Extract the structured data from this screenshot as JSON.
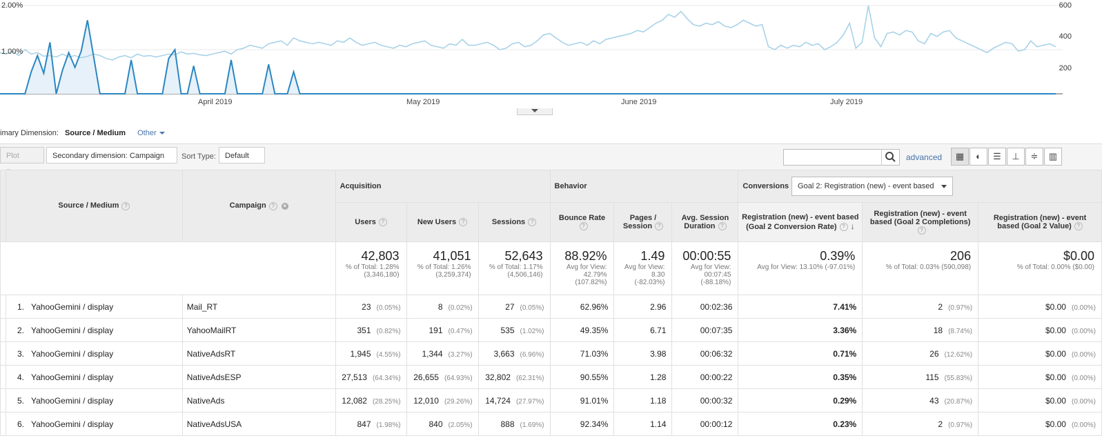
{
  "chart": {
    "left_axis": [
      "2.00%",
      "1.00%"
    ],
    "right_axis": [
      "600",
      "400",
      "200"
    ],
    "months": [
      "April 2019",
      "May 2019",
      "June 2019",
      "July 2019"
    ],
    "colors": {
      "series_light": "#a8d2e8",
      "series_dark": "#2b86c0",
      "fill": "#e6f1fa"
    }
  },
  "chart_data": {
    "type": "line",
    "series": [
      {
        "values": [
          280,
          270,
          290,
          260,
          300,
          270,
          280,
          255,
          260,
          250,
          270,
          250,
          260,
          245,
          255,
          270,
          260,
          240,
          230,
          250,
          260,
          245,
          270,
          255,
          260,
          250,
          260,
          270,
          265,
          285,
          270,
          275,
          265,
          260,
          270,
          280,
          290,
          270,
          300,
          310,
          330,
          320,
          310,
          340,
          350,
          360,
          330,
          380,
          360,
          350,
          340,
          350,
          340,
          330,
          360,
          350,
          380,
          350,
          330,
          340,
          350,
          330,
          320,
          310,
          330,
          320,
          340,
          350,
          360,
          330,
          320,
          310,
          340,
          330,
          370,
          330,
          330,
          340,
          350,
          330,
          300,
          310,
          340,
          350,
          320,
          330,
          360,
          400,
          410,
          380,
          350,
          330,
          340,
          350,
          330,
          360,
          340,
          370,
          380,
          390,
          400,
          410,
          430,
          420,
          450,
          480,
          500,
          540,
          520,
          560,
          510,
          470,
          460,
          480,
          470,
          490,
          460,
          450,
          470,
          500,
          480,
          460,
          470,
          320,
          300,
          330,
          310,
          330,
          320,
          350,
          330,
          340,
          300,
          320,
          350,
          400,
          480,
          310,
          350,
          600,
          380,
          320,
          410,
          420,
          400,
          430,
          420,
          360,
          340,
          410,
          390,
          420,
          430,
          380,
          360,
          340,
          320,
          300,
          280,
          310,
          330,
          350,
          340,
          290,
          300,
          360,
          320,
          330,
          340,
          320
        ]
      },
      {
        "values": [
          0,
          0,
          0,
          0,
          0,
          150,
          260,
          140,
          350,
          0,
          160,
          280,
          180,
          290,
          500,
          250,
          0,
          0,
          0,
          0,
          0,
          230,
          0,
          0,
          0,
          0,
          0,
          240,
          300,
          0,
          0,
          190,
          0,
          0,
          0,
          0,
          0,
          230,
          0,
          0,
          0,
          0,
          0,
          200,
          0,
          0,
          0,
          150,
          0,
          0,
          0,
          0,
          0,
          0,
          0,
          0,
          0,
          0,
          0,
          0,
          0,
          0,
          0,
          0,
          0,
          0,
          0,
          0,
          0,
          0,
          0,
          0,
          0,
          0,
          0,
          0,
          0,
          0,
          0,
          0,
          0,
          0,
          0,
          0,
          0,
          0,
          0,
          0,
          0,
          0,
          0,
          0,
          0,
          0,
          0,
          0,
          0,
          0,
          0,
          0,
          0,
          0,
          0,
          0,
          0,
          0,
          0,
          0,
          0,
          0,
          0,
          0,
          0,
          0,
          0,
          0,
          0,
          0,
          0,
          0,
          0,
          0,
          0,
          0,
          0,
          0,
          0,
          0,
          0,
          0,
          0,
          0,
          0,
          0,
          0,
          0,
          0,
          0,
          0,
          0,
          0,
          0,
          0,
          0,
          0,
          0,
          0,
          0,
          0,
          0,
          0,
          0,
          0,
          0,
          0,
          0,
          0,
          0,
          0,
          0,
          0,
          0,
          0,
          0,
          0,
          0,
          0,
          0,
          0,
          0
        ]
      }
    ],
    "right_axis_max": 600,
    "left_axis_max": "2.00%"
  },
  "dimension": {
    "label": "imary Dimension:",
    "active": "Source / Medium",
    "other": "Other"
  },
  "toolbar": {
    "plot_rows": "Plot Rows",
    "secondary": "Secondary dimension: Campaign",
    "sort_label": "Sort Type:",
    "sort_value": "Default",
    "advanced": "advanced"
  },
  "table": {
    "headers": {
      "source_medium": "Source / Medium",
      "campaign": "Campaign",
      "acquisition": "Acquisition",
      "behavior": "Behavior",
      "conversions": "Conversions",
      "goal_select": "Goal 2: Registration (new) - event based",
      "users": "Users",
      "new_users": "New Users",
      "sessions": "Sessions",
      "bounce_rate": "Bounce Rate",
      "pages_l1": "Pages /",
      "pages_l2": "Session",
      "avg_l1": "Avg. Session",
      "avg_l2": "Duration",
      "conv_rate_l1": "Registration (new) - event based",
      "conv_rate_l2": "(Goal 2 Conversion Rate)",
      "completions_l1": "Registration (new) - event",
      "completions_l2": "based (Goal 2 Completions)",
      "value_l1": "Registration (new) - event",
      "value_l2": "based (Goal 2 Value)"
    },
    "totals": {
      "users": {
        "big": "42,803",
        "s1": "% of Total: 1.28%",
        "s2": "(3,346,180)"
      },
      "new_users": {
        "big": "41,051",
        "s1": "% of Total: 1.26%",
        "s2": "(3,259,374)"
      },
      "sessions": {
        "big": "52,643",
        "s1": "% of Total: 1.17%",
        "s2": "(4,506,146)"
      },
      "bounce": {
        "big": "88.92%",
        "s1": "Avg for View:",
        "s2": "42.79%",
        "s3": "(107.82%)"
      },
      "pages": {
        "big": "1.49",
        "s1": "Avg for View:",
        "s2": "8.30",
        "s3": "(-82.03%)"
      },
      "duration": {
        "big": "00:00:55",
        "s1": "Avg for View:",
        "s2": "00:07:45",
        "s3": "(-88.18%)"
      },
      "conv_rate": {
        "big": "0.39%",
        "s1": "Avg for View: 13.10% (-97.01%)"
      },
      "completions": {
        "big": "206",
        "s1": "% of Total: 0.03% (590,098)"
      },
      "value": {
        "big": "$0.00",
        "s1": "% of Total: 0.00% ($0.00)"
      }
    },
    "rows": [
      {
        "idx": "1.",
        "src": "YahooGemini / display",
        "camp": "Mail_RT",
        "users": "23",
        "users_p": "(0.05%)",
        "new": "8",
        "new_p": "(0.02%)",
        "sess": "27",
        "sess_p": "(0.05%)",
        "bounce": "62.96%",
        "pages": "2.96",
        "dur": "00:02:36",
        "rate": "7.41%",
        "comp": "2",
        "comp_p": "(0.97%)",
        "val": "$0.00",
        "val_p": "(0.00%)"
      },
      {
        "idx": "2.",
        "src": "YahooGemini / display",
        "camp": "YahooMailRT",
        "users": "351",
        "users_p": "(0.82%)",
        "new": "191",
        "new_p": "(0.47%)",
        "sess": "535",
        "sess_p": "(1.02%)",
        "bounce": "49.35%",
        "pages": "6.71",
        "dur": "00:07:35",
        "rate": "3.36%",
        "comp": "18",
        "comp_p": "(8.74%)",
        "val": "$0.00",
        "val_p": "(0.00%)"
      },
      {
        "idx": "3.",
        "src": "YahooGemini / display",
        "camp": "NativeAdsRT",
        "users": "1,945",
        "users_p": "(4.55%)",
        "new": "1,344",
        "new_p": "(3.27%)",
        "sess": "3,663",
        "sess_p": "(6.96%)",
        "bounce": "71.03%",
        "pages": "3.98",
        "dur": "00:06:32",
        "rate": "0.71%",
        "comp": "26",
        "comp_p": "(12.62%)",
        "val": "$0.00",
        "val_p": "(0.00%)"
      },
      {
        "idx": "4.",
        "src": "YahooGemini / display",
        "camp": "NativeAdsESP",
        "users": "27,513",
        "users_p": "(64.34%)",
        "new": "26,655",
        "new_p": "(64.93%)",
        "sess": "32,802",
        "sess_p": "(62.31%)",
        "bounce": "90.55%",
        "pages": "1.28",
        "dur": "00:00:22",
        "rate": "0.35%",
        "comp": "115",
        "comp_p": "(55.83%)",
        "val": "$0.00",
        "val_p": "(0.00%)"
      },
      {
        "idx": "5.",
        "src": "YahooGemini / display",
        "camp": "NativeAds",
        "users": "12,082",
        "users_p": "(28.25%)",
        "new": "12,010",
        "new_p": "(29.26%)",
        "sess": "14,724",
        "sess_p": "(27.97%)",
        "bounce": "91.01%",
        "pages": "1.18",
        "dur": "00:00:32",
        "rate": "0.29%",
        "comp": "43",
        "comp_p": "(20.87%)",
        "val": "$0.00",
        "val_p": "(0.00%)"
      },
      {
        "idx": "6.",
        "src": "YahooGemini / display",
        "camp": "NativeAdsUSA",
        "users": "847",
        "users_p": "(1.98%)",
        "new": "840",
        "new_p": "(2.05%)",
        "sess": "888",
        "sess_p": "(1.69%)",
        "bounce": "92.34%",
        "pages": "1.14",
        "dur": "00:00:12",
        "rate": "0.23%",
        "comp": "2",
        "comp_p": "(0.97%)",
        "val": "$0.00",
        "val_p": "(0.00%)"
      }
    ]
  }
}
